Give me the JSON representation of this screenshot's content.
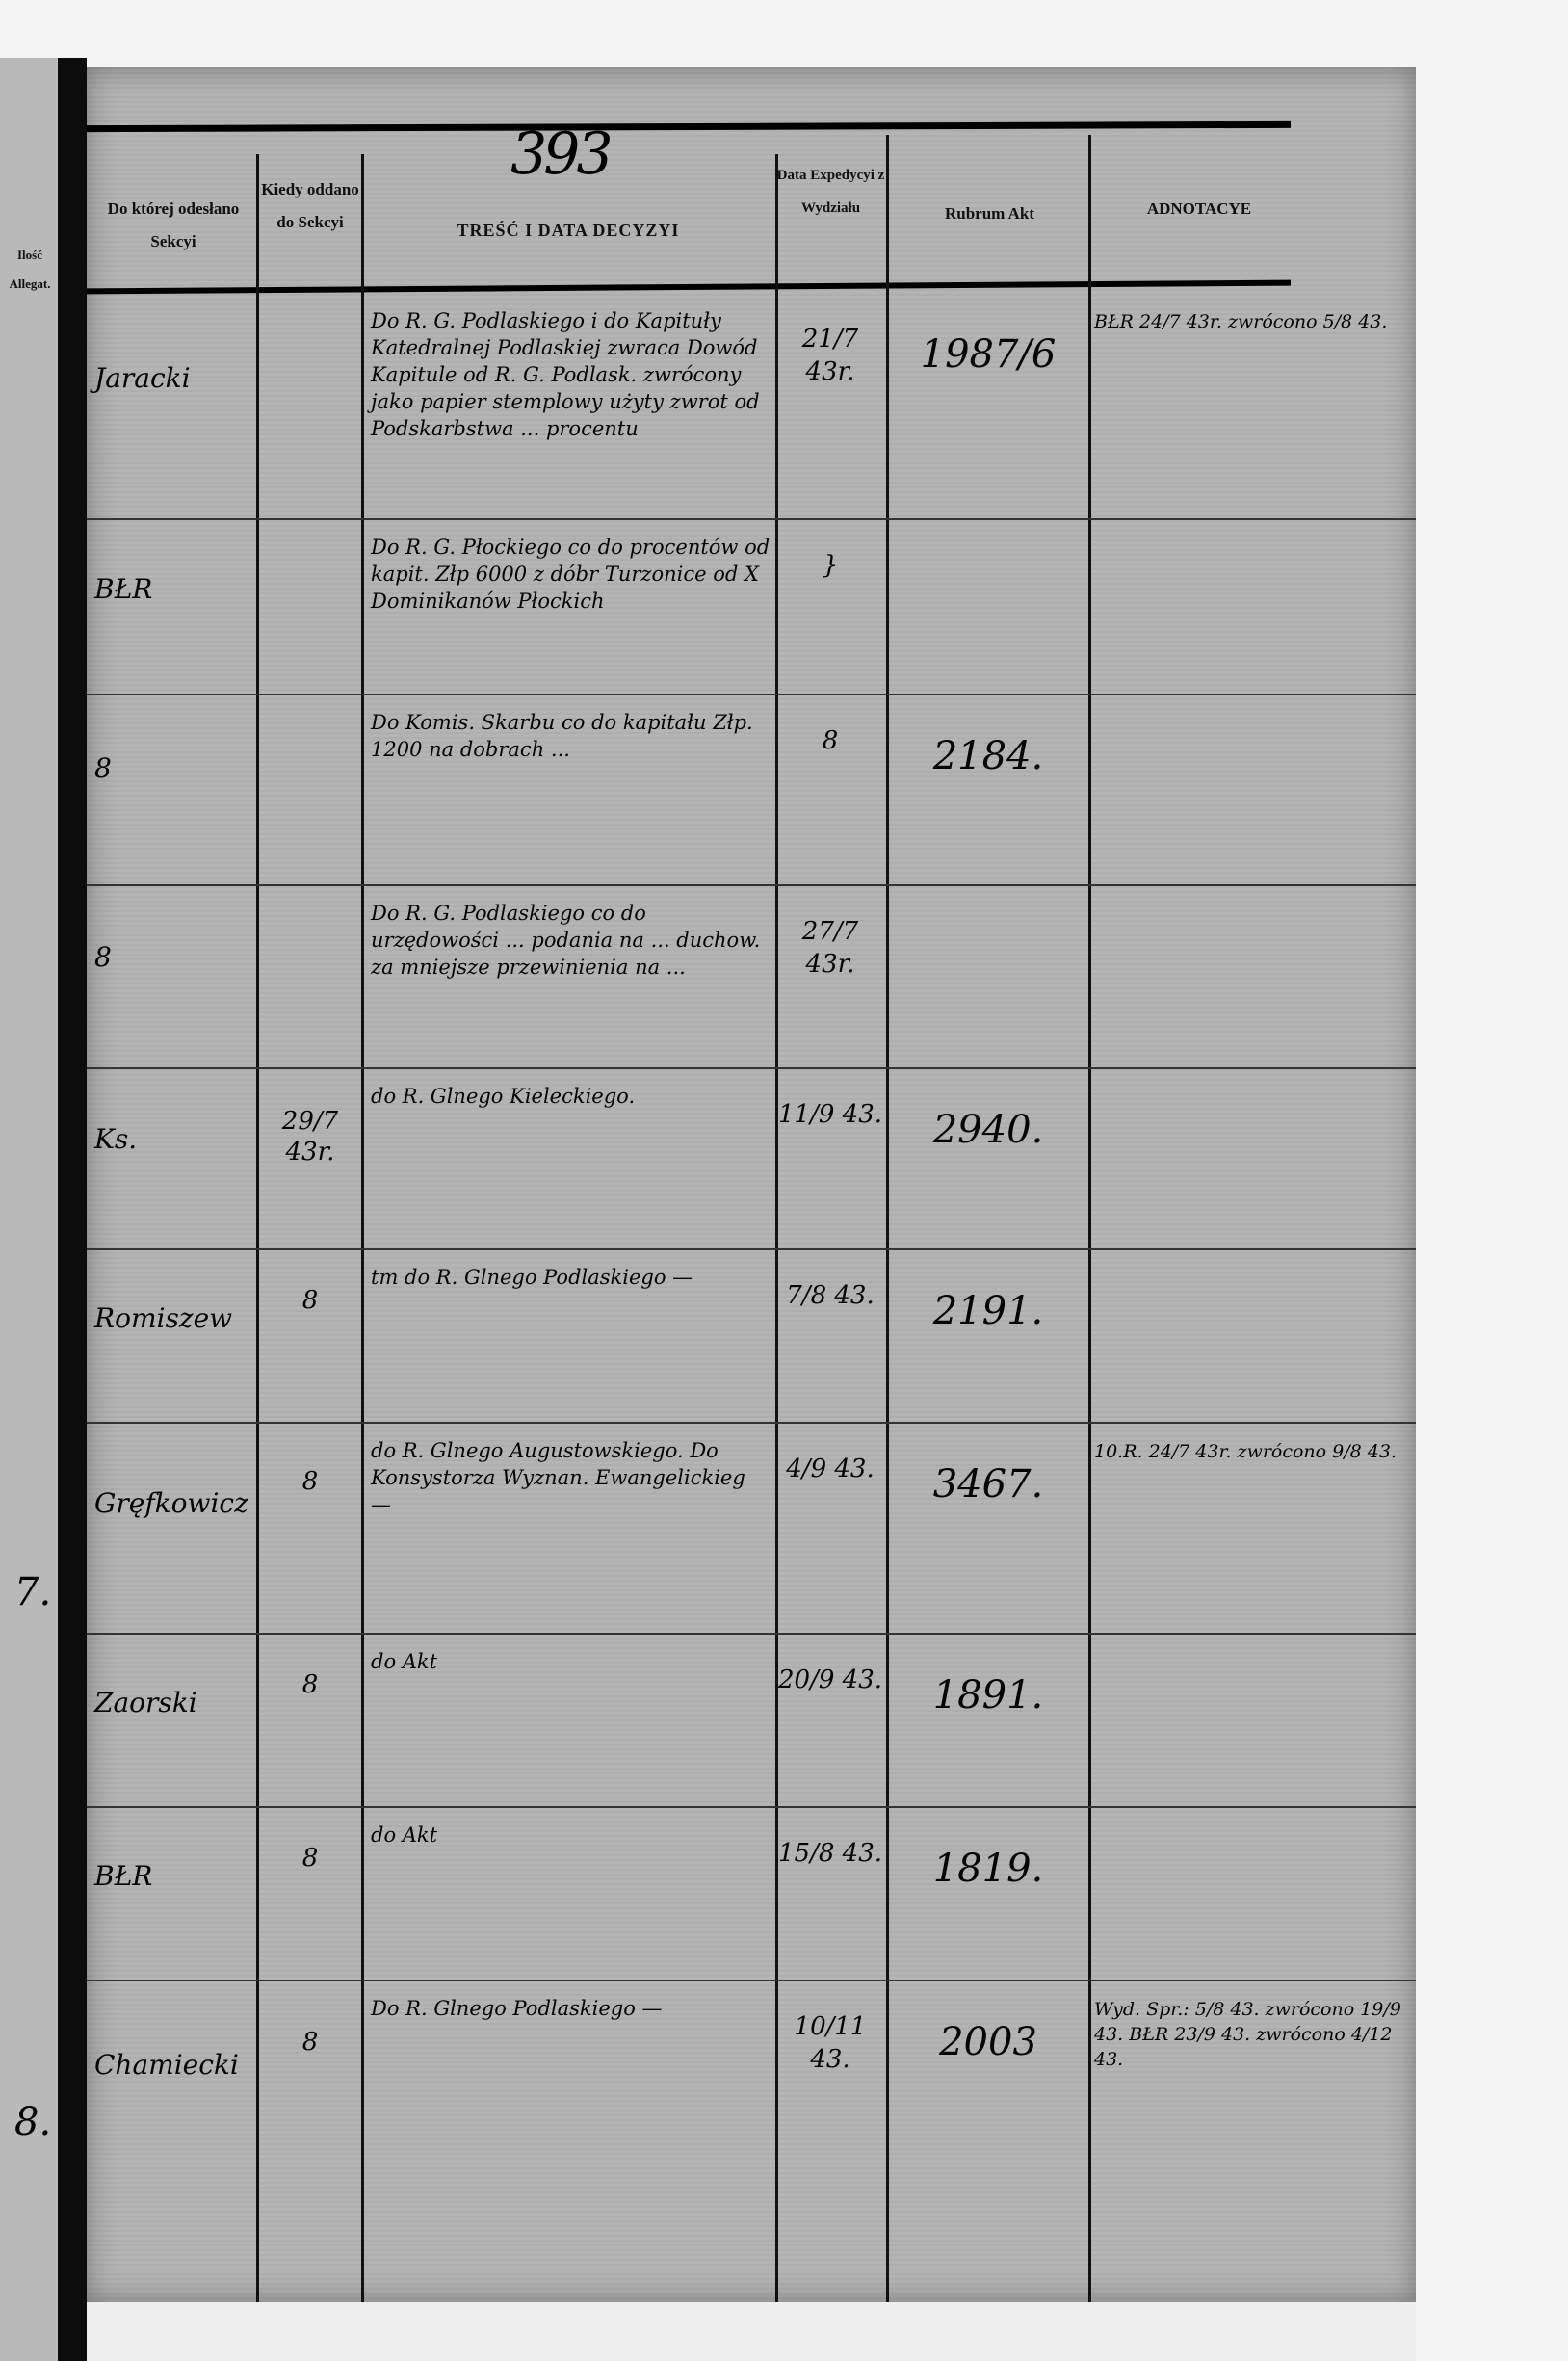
{
  "page_number": "393",
  "left_page": {
    "header": "Ilość Allegat.",
    "marks": [
      "7.",
      "8."
    ]
  },
  "headers": {
    "col1": "Do której odesłano Sekcyi",
    "col2": "Kiedy oddano do Sekcyi",
    "col3": "TREŚĆ I DATA DECYZYI",
    "col4": "Data Expedycyi z Wydziału",
    "col5": "Rubrum Akt",
    "col6": "ADNOTACYE"
  },
  "rows": [
    {
      "sekcja": "Jaracki",
      "kiedy": "",
      "tresc": "Do R. G. Podlaskiego i do Kapituły Katedralnej Podlaskiej zwraca Dowód Kapitule od R. G. Podlask. zwrócony jako papier stemplowy użyty zwrot od Podskarbstwa ... procentu",
      "data": "21/7 43r.",
      "rubrum": "1987/6",
      "adnotacye": "BŁR 24/7 43r. zwrócono 5/8 43."
    },
    {
      "sekcja": "BŁR",
      "kiedy": "",
      "tresc": "Do R. G. Płockiego co do procentów od kapit. Złp 6000 z dóbr Turzonice od X Dominikanów Płockich",
      "data": "}",
      "rubrum": "",
      "adnotacye": ""
    },
    {
      "sekcja": "8",
      "kiedy": "",
      "tresc": "Do Komis. Skarbu co do kapitału Złp. 1200 na dobrach ...",
      "data": "8",
      "rubrum": "2184.",
      "adnotacye": ""
    },
    {
      "sekcja": "8",
      "kiedy": "",
      "tresc": "Do R. G. Podlaskiego co do urzędowości ... podania na ... duchow. za mniejsze przewinienia na ...",
      "data": "27/7 43r.",
      "rubrum": "",
      "adnotacye": ""
    },
    {
      "sekcja": "Ks.",
      "kiedy": "29/7 43r.",
      "tresc": "do R. Glnego Kieleckiego.",
      "data": "11/9 43.",
      "rubrum": "2940.",
      "adnotacye": ""
    },
    {
      "sekcja": "Romiszew",
      "kiedy": "8",
      "tresc": "tm do R. Glnego Podlaskiego —",
      "data": "7/8 43.",
      "rubrum": "2191.",
      "adnotacye": ""
    },
    {
      "sekcja": "Gręfkowicz",
      "kiedy": "8",
      "tresc": "do R. Glnego Augustowskiego. Do Konsystorza Wyznan. Ewangelickieg —",
      "data": "4/9 43.",
      "rubrum": "3467.",
      "adnotacye": "10.R. 24/7 43r. zwrócono 9/8 43."
    },
    {
      "sekcja": "Zaorski",
      "kiedy": "8",
      "tresc": "do Akt",
      "data": "20/9 43.",
      "rubrum": "1891.",
      "adnotacye": ""
    },
    {
      "sekcja": "BŁR",
      "kiedy": "8",
      "tresc": "do Akt",
      "data": "15/8 43.",
      "rubrum": "1819.",
      "adnotacye": ""
    },
    {
      "sekcja": "Chamiecki",
      "kiedy": "8",
      "tresc": "Do R. Glnego Podlaskiego —",
      "data": "10/11 43.",
      "rubrum": "2003",
      "adnotacye": "Wyd. Spr.: 5/8 43. zwrócono 19/9 43. BŁR 23/9 43. zwrócono 4/12 43."
    }
  ]
}
